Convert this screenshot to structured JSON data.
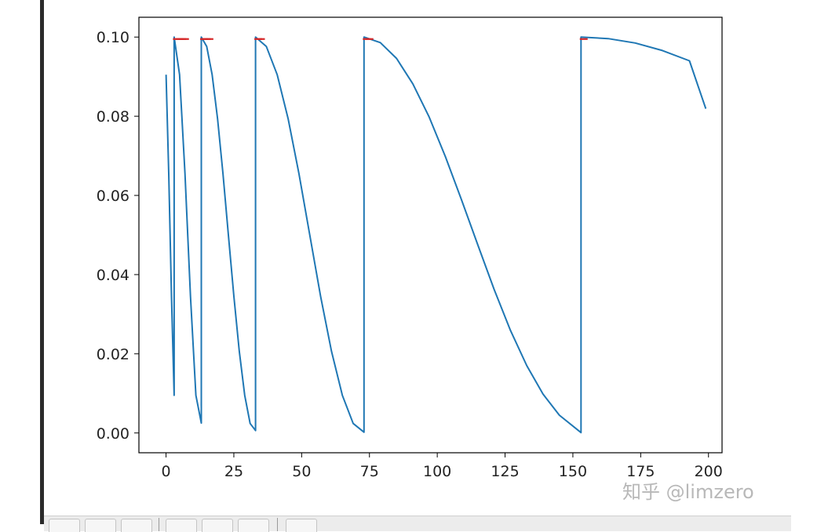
{
  "chart_data": {
    "type": "line",
    "title": "",
    "xlabel": "",
    "ylabel": "",
    "xlim": [
      -10,
      205
    ],
    "ylim": [
      -0.005,
      0.105
    ],
    "grid": false,
    "x_ticks": [
      0,
      25,
      50,
      75,
      100,
      125,
      150,
      175,
      200
    ],
    "x_tick_labels": [
      "0",
      "25",
      "50",
      "75",
      "100",
      "125",
      "150",
      "175",
      "200"
    ],
    "y_ticks": [
      0.0,
      0.02,
      0.04,
      0.06,
      0.08,
      0.1
    ],
    "y_tick_labels": [
      "0.00",
      "0.02",
      "0.04",
      "0.06",
      "0.08",
      "0.10"
    ],
    "series": [
      {
        "color": "#1f77b4",
        "x": [
          0,
          1,
          2,
          3,
          3,
          5,
          7,
          9,
          11,
          13,
          13,
          15,
          17,
          19,
          21,
          23,
          25,
          27,
          29,
          31,
          33,
          33,
          37,
          41,
          45,
          49,
          53,
          57,
          61,
          65,
          69,
          73,
          73,
          79,
          85,
          91,
          97,
          103,
          109,
          115,
          121,
          127,
          133,
          139,
          145,
          153,
          153,
          163,
          173,
          183,
          193,
          199
        ],
        "y": [
          0.0905,
          0.0655,
          0.0345,
          0.0095,
          0.1,
          0.0905,
          0.0655,
          0.0345,
          0.0095,
          0.0025,
          0.1,
          0.0976,
          0.0905,
          0.0794,
          0.0655,
          0.05,
          0.0345,
          0.0206,
          0.0095,
          0.0024,
          0.0006,
          0.1,
          0.0976,
          0.0905,
          0.0794,
          0.0655,
          0.05,
          0.0345,
          0.0206,
          0.0095,
          0.0024,
          0.0002,
          0.1,
          0.0986,
          0.0946,
          0.0882,
          0.0798,
          0.0698,
          0.0588,
          0.0474,
          0.0362,
          0.0259,
          0.017,
          0.0098,
          0.0045,
          0.0001,
          0.1,
          0.0996,
          0.0985,
          0.0966,
          0.094,
          0.0819
        ]
      }
    ],
    "markers": {
      "color": "#d62728",
      "x": [
        4,
        5,
        6,
        7,
        14,
        15,
        16,
        34,
        35,
        74,
        75,
        154
      ],
      "y": [
        0.0995,
        0.0995,
        0.0995,
        0.0995,
        0.0995,
        0.0995,
        0.0995,
        0.0995,
        0.0995,
        0.0995,
        0.0995,
        0.0995
      ]
    }
  },
  "watermark": "知乎 @limzero"
}
